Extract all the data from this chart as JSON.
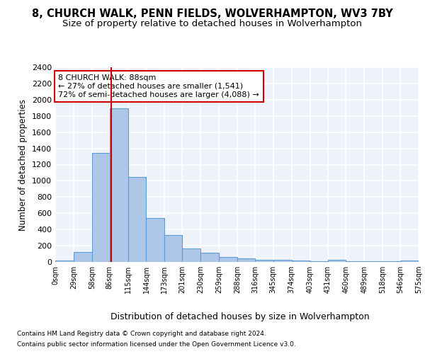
{
  "title_line1": "8, CHURCH WALK, PENN FIELDS, WOLVERHAMPTON, WV3 7BY",
  "title_line2": "Size of property relative to detached houses in Wolverhampton",
  "xlabel": "Distribution of detached houses by size in Wolverhampton",
  "ylabel": "Number of detached properties",
  "footnote1": "Contains HM Land Registry data © Crown copyright and database right 2024.",
  "footnote2": "Contains public sector information licensed under the Open Government Licence v3.0.",
  "annotation_line1": "8 CHURCH WALK: 88sqm",
  "annotation_line2": "← 27% of detached houses are smaller (1,541)",
  "annotation_line3": "72% of semi-detached houses are larger (4,088) →",
  "property_size_sqm": 88,
  "bar_color": "#aec6e8",
  "bar_edge_color": "#5a9fd4",
  "property_line_color": "#cc0000",
  "annotation_box_color": "#cc0000",
  "bins": [
    0,
    29,
    58,
    86,
    115,
    144,
    173,
    201,
    230,
    259,
    288,
    316,
    345,
    374,
    403,
    431,
    460,
    489,
    518,
    546,
    575
  ],
  "bar_heights": [
    15,
    120,
    1340,
    1890,
    1045,
    540,
    335,
    165,
    110,
    60,
    40,
    30,
    25,
    20,
    10,
    25,
    5,
    5,
    5,
    20
  ],
  "tick_labels": [
    "0sqm",
    "29sqm",
    "58sqm",
    "86sqm",
    "115sqm",
    "144sqm",
    "173sqm",
    "201sqm",
    "230sqm",
    "259sqm",
    "288sqm",
    "316sqm",
    "345sqm",
    "374sqm",
    "403sqm",
    "431sqm",
    "460sqm",
    "489sqm",
    "518sqm",
    "546sqm",
    "575sqm"
  ],
  "ylim": [
    0,
    2400
  ],
  "yticks": [
    0,
    200,
    400,
    600,
    800,
    1000,
    1200,
    1400,
    1600,
    1800,
    2000,
    2200,
    2400
  ],
  "background_color": "#eef2fa",
  "grid_color": "#ffffff",
  "title_fontsize": 10.5,
  "subtitle_fontsize": 9.5
}
